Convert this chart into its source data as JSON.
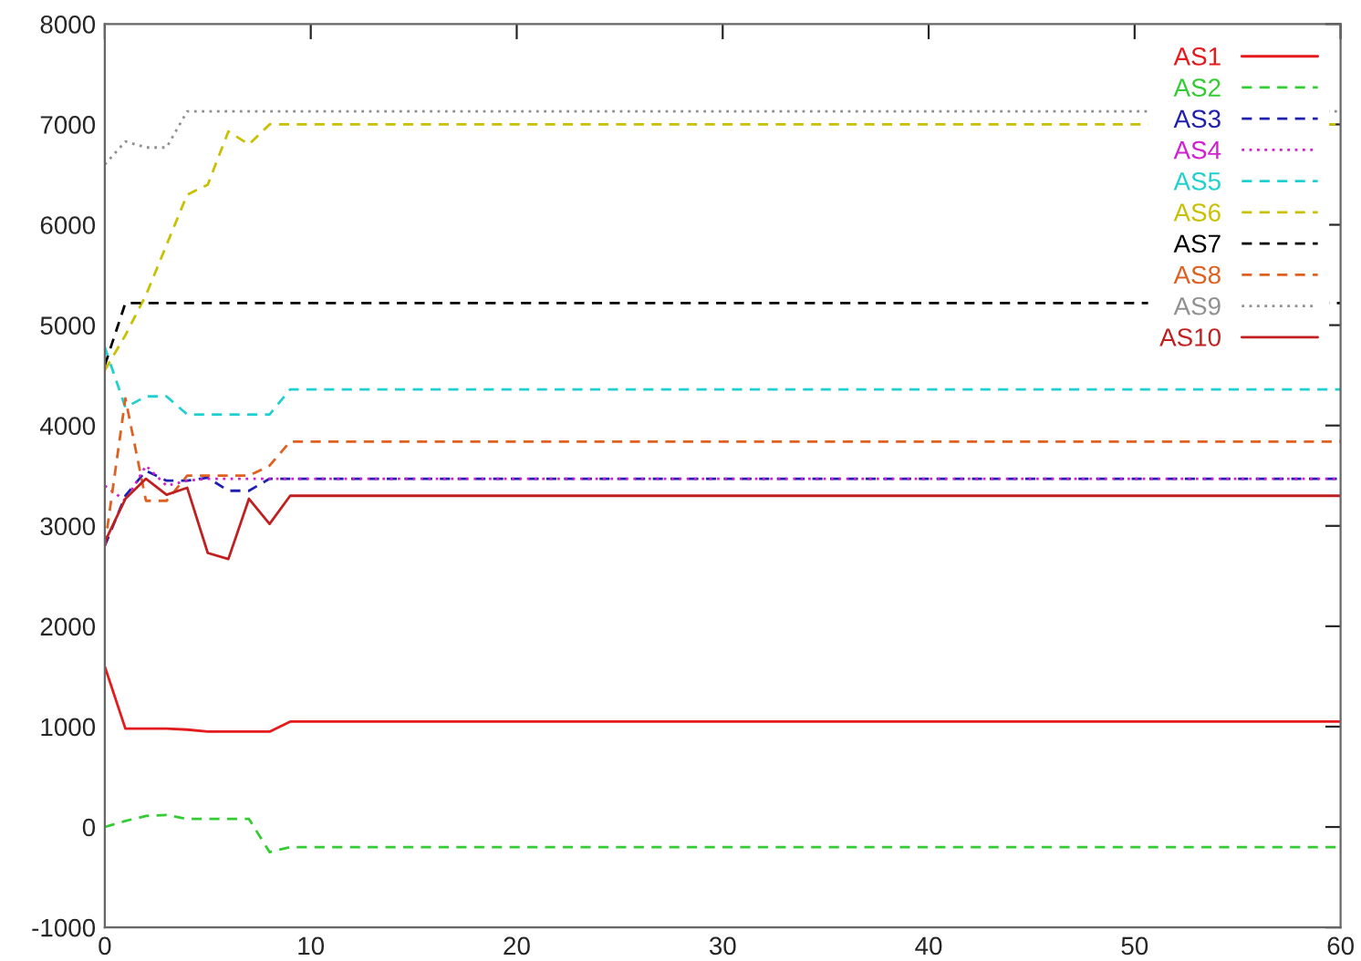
{
  "chart_data": {
    "type": "line",
    "xlim": [
      0,
      60
    ],
    "ylim": [
      -1000,
      8000
    ],
    "xticks": [
      0,
      10,
      20,
      30,
      40,
      50,
      60
    ],
    "yticks": [
      -1000,
      0,
      1000,
      2000,
      3000,
      4000,
      5000,
      6000,
      7000,
      8000
    ],
    "grid": false,
    "legend": "top right",
    "marker": "none",
    "series": [
      {
        "name": "AS1",
        "color": "#e41a1c",
        "line_style": "solid",
        "x": [
          0,
          1,
          2,
          3,
          4,
          5,
          6,
          7,
          8,
          9,
          60
        ],
        "values": [
          1600,
          980,
          980,
          980,
          970,
          950,
          950,
          950,
          950,
          1050,
          1050
        ]
      },
      {
        "name": "AS2",
        "color": "#33cc33",
        "line_style": "dashed",
        "x": [
          0,
          1,
          2,
          3,
          4,
          5,
          6,
          7,
          8,
          9,
          60
        ],
        "values": [
          0,
          60,
          110,
          120,
          80,
          80,
          80,
          80,
          -250,
          -200,
          -200
        ]
      },
      {
        "name": "AS3",
        "color": "#2020b0",
        "line_style": "dashed",
        "x": [
          0,
          1,
          2,
          3,
          4,
          5,
          6,
          7,
          8,
          60
        ],
        "values": [
          2800,
          3300,
          3550,
          3450,
          3450,
          3480,
          3350,
          3350,
          3470,
          3470
        ]
      },
      {
        "name": "AS4",
        "color": "#d020d0",
        "line_style": "dotted",
        "x": [
          0,
          1,
          2,
          3,
          4,
          5,
          60
        ],
        "values": [
          3400,
          3250,
          3600,
          3400,
          3450,
          3470,
          3470
        ]
      },
      {
        "name": "AS5",
        "color": "#20d0d0",
        "line_style": "dashed",
        "x": [
          0,
          1,
          2,
          3,
          4,
          5,
          6,
          7,
          8,
          9,
          60
        ],
        "values": [
          4780,
          4180,
          4290,
          4290,
          4110,
          4110,
          4110,
          4110,
          4110,
          4360,
          4360
        ]
      },
      {
        "name": "AS6",
        "color": "#c8c000",
        "line_style": "dashed",
        "x": [
          0,
          1,
          2,
          3,
          4,
          5,
          6,
          7,
          8,
          9,
          60
        ],
        "values": [
          4550,
          4900,
          5300,
          5800,
          6300,
          6400,
          6930,
          6800,
          7000,
          7000,
          7000
        ]
      },
      {
        "name": "AS7",
        "color": "#000000",
        "line_style": "dashed",
        "x": [
          0,
          1,
          60
        ],
        "values": [
          4600,
          5220,
          5220
        ]
      },
      {
        "name": "AS8",
        "color": "#e06020",
        "line_style": "dashed",
        "x": [
          0,
          1,
          2,
          3,
          4,
          5,
          6,
          7,
          8,
          9,
          60
        ],
        "values": [
          2800,
          4270,
          3250,
          3250,
          3500,
          3500,
          3500,
          3500,
          3600,
          3840,
          3840
        ]
      },
      {
        "name": "AS9",
        "color": "#909090",
        "line_style": "dotted",
        "x": [
          0,
          1,
          2,
          3,
          4,
          60
        ],
        "values": [
          6600,
          6830,
          6770,
          6770,
          7130,
          7130
        ]
      },
      {
        "name": "AS10",
        "color": "#c02020",
        "line_style": "solid",
        "x": [
          0,
          1,
          2,
          3,
          4,
          5,
          6,
          7,
          8,
          9,
          60
        ],
        "values": [
          2840,
          3270,
          3470,
          3310,
          3380,
          2730,
          2670,
          3270,
          3020,
          3300,
          3300
        ]
      }
    ]
  }
}
